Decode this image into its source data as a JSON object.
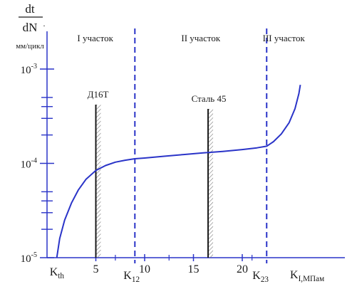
{
  "chart_data": {
    "type": "line",
    "ylabel": {
      "numerator": "dt",
      "denominator": "dN",
      "units": "мм/цикл"
    },
    "xlabel": "K",
    "xlabel_sub": "I",
    "xlabel_units": ",МПам",
    "y_scale": "log",
    "ylim": [
      1e-05,
      0.001
    ],
    "xlim": [
      0,
      26
    ],
    "y_ticks": [
      {
        "base": "10",
        "exp": "-3",
        "value": 0.001
      },
      {
        "base": "10",
        "exp": "-4",
        "value": 0.0001
      },
      {
        "base": "10",
        "exp": "-5",
        "value": 1e-05
      }
    ],
    "x_ticks": [
      {
        "value": 5,
        "label": "5"
      },
      {
        "value": 10,
        "label": "10"
      },
      {
        "value": 15,
        "label": "15"
      },
      {
        "value": 20,
        "label": "20"
      }
    ],
    "x_markers": [
      {
        "base": "K",
        "sub": "th",
        "value": 1.0
      },
      {
        "base": "K",
        "sub": "12",
        "value": 9.0
      },
      {
        "base": "K",
        "sub": "23",
        "value": 22.5
      }
    ],
    "regions": [
      {
        "label": "I участок",
        "from": 0,
        "to": 9.0
      },
      {
        "label": "II участок",
        "from": 9.0,
        "to": 22.5
      },
      {
        "label": "III участок",
        "from": 22.5,
        "to": 26
      }
    ],
    "materials": [
      {
        "label": "Д16Т",
        "value": 5.0
      },
      {
        "label": "Сталь 45",
        "value": 16.5
      }
    ],
    "series": [
      {
        "color": "#2a34c8",
        "points": [
          [
            1.0,
            1e-05
          ],
          [
            1.3,
            1.6e-05
          ],
          [
            1.8,
            2.5e-05
          ],
          [
            2.5,
            3.8e-05
          ],
          [
            3.2,
            5.2e-05
          ],
          [
            4.0,
            6.8e-05
          ],
          [
            5.0,
            8.4e-05
          ],
          [
            6.0,
            9.5e-05
          ],
          [
            7.0,
            0.000103
          ],
          [
            8.0,
            0.000108
          ],
          [
            9.0,
            0.000112
          ],
          [
            10.0,
            0.000114
          ],
          [
            12.0,
            0.000119
          ],
          [
            14.0,
            0.000124
          ],
          [
            16.0,
            0.000129
          ],
          [
            18.0,
            0.000134
          ],
          [
            20.0,
            0.00014
          ],
          [
            21.5,
            0.000146
          ],
          [
            22.5,
            0.000152
          ],
          [
            23.2,
            0.00017
          ],
          [
            24.0,
            0.000205
          ],
          [
            24.8,
            0.00027
          ],
          [
            25.4,
            0.00038
          ],
          [
            25.8,
            0.00055
          ],
          [
            25.95,
            0.00068
          ]
        ]
      }
    ],
    "grid": false,
    "colors": {
      "curve": "#2a34c8",
      "dashed": "#2a34c8",
      "axis": "#2a34c8",
      "text": "#1a1a1a"
    }
  }
}
